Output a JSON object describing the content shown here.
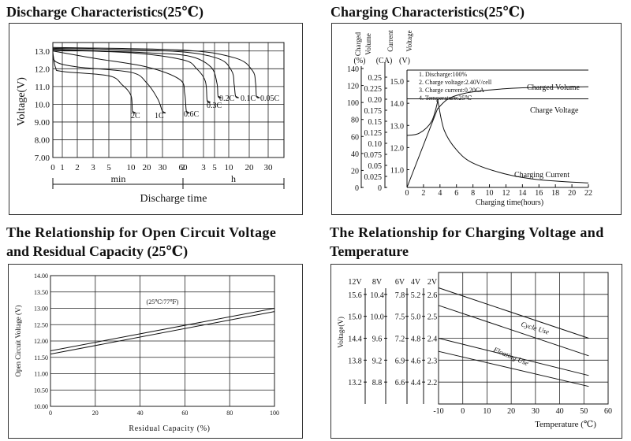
{
  "headings": {
    "discharge": "Discharge Characteristics(25℃)",
    "charging": "Charging Characteristics(25℃)",
    "ocv_line1": "The Relationship for Open Circuit Voltage",
    "ocv_line2": "and Residual Capacity (25℃)",
    "temp_line1": "The Relationship for Charging Voltage and",
    "temp_line2": "Temperature"
  },
  "chart_data": [
    {
      "id": "discharge",
      "type": "line",
      "title": "Discharge Characteristics(25℃)",
      "ylabel": "Voltage(V)",
      "xlabel": "Discharge time",
      "x_groups": [
        "min",
        "h"
      ],
      "x_ticks_min": [
        "0",
        "1",
        "2",
        "3",
        "5",
        "10",
        "20",
        "30",
        "60"
      ],
      "x_ticks_h": [
        "2",
        "3",
        "5",
        "10",
        "20",
        "30"
      ],
      "y_ticks": [
        "7.00",
        "8.00",
        "9.00",
        "10.0",
        "11.0",
        "12.0",
        "13.0"
      ],
      "ylim": [
        7,
        13.3
      ],
      "grid": true,
      "series": [
        {
          "name": "2C",
          "points": [
            [
              0,
              12.9
            ],
            [
              0.3,
              12.05
            ],
            [
              1,
              11.85
            ],
            [
              5,
              11.6
            ],
            [
              8,
              11.1
            ],
            [
              10,
              10.5
            ],
            [
              11,
              9.6
            ]
          ]
        },
        {
          "name": "1C",
          "points": [
            [
              0,
              12.95
            ],
            [
              0.3,
              12.4
            ],
            [
              2,
              12.1
            ],
            [
              10,
              11.8
            ],
            [
              20,
              11.2
            ],
            [
              27,
              10.3
            ],
            [
              30,
              9.6
            ]
          ]
        },
        {
          "name": "0.6C",
          "points": [
            [
              0,
              13.0
            ],
            [
              3,
              12.6
            ],
            [
              20,
              12.1
            ],
            [
              55,
              11.4
            ],
            [
              65,
              10.6
            ],
            [
              70,
              9.6
            ]
          ]
        },
        {
          "name": "0.3C",
          "points": [
            [
              0,
              13.05
            ],
            [
              10,
              12.9
            ],
            [
              60,
              12.5
            ],
            [
              100,
              12.0
            ],
            [
              130,
              11.3
            ],
            [
              140,
              10.2
            ]
          ]
        },
        {
          "name": "0.2C",
          "points": [
            [
              0,
              13.1
            ],
            [
              20,
              12.9
            ],
            [
              80,
              12.7
            ],
            [
              160,
              12.1
            ],
            [
              200,
              11.2
            ],
            [
              210,
              10.45
            ]
          ]
        },
        {
          "name": "0.1C",
          "points": [
            [
              0,
              13.15
            ],
            [
              40,
              13.0
            ],
            [
              200,
              12.6
            ],
            [
              340,
              11.9
            ],
            [
              380,
              11.1
            ],
            [
              400,
              10.45
            ]
          ]
        },
        {
          "name": "0.05C",
          "points": [
            [
              0,
              13.2
            ],
            [
              60,
              13.05
            ],
            [
              400,
              12.6
            ],
            [
              700,
              11.9
            ],
            [
              800,
              11.2
            ],
            [
              830,
              10.45
            ]
          ]
        }
      ]
    },
    {
      "id": "charging",
      "type": "line",
      "title": "Charging Characteristics(25℃)",
      "xlabel": "Charging time(hours)",
      "x_ticks": [
        "0",
        "2",
        "4",
        "6",
        "8",
        "10",
        "12",
        "14",
        "16",
        "18",
        "20",
        "22"
      ],
      "xlim": [
        0,
        22
      ],
      "axis_headers": {
        "charged_volume": [
          "Charged",
          "Volume"
        ],
        "current": "Current",
        "voltage": "Voltage"
      },
      "axis_units": {
        "charged_volume": "(%)",
        "current": "(CA)",
        "voltage": "(V)"
      },
      "charged_volume_ticks": [
        "0",
        "20",
        "40",
        "60",
        "80",
        "100",
        "120",
        "140"
      ],
      "current_ticks": [
        "0",
        "0.025",
        "0.05",
        "0.075",
        "0.10",
        "0.125",
        "0.15",
        "0.175",
        "0.20",
        "0.225",
        "0.25"
      ],
      "voltage_ticks": [
        "11.0",
        "12.0",
        "13.0",
        "14.0",
        "15.0"
      ],
      "voltage_lim": [
        10.2,
        15.5
      ],
      "notes": [
        "1. Discharge:100%",
        "2. Charge voltage:2.40V/cell",
        "3. Charge current:0.20CA",
        "4. Temperature:25℃"
      ],
      "series": [
        {
          "name": "Charged Volume",
          "points": [
            [
              0,
              10.2
            ],
            [
              3.7,
              13.75
            ],
            [
              5,
              14.2
            ],
            [
              7,
              14.45
            ],
            [
              10,
              14.6
            ],
            [
              14,
              14.7
            ],
            [
              22,
              14.75
            ]
          ]
        },
        {
          "name": "Charge Voltage",
          "points": [
            [
              0,
              12.55
            ],
            [
              1.5,
              12.65
            ],
            [
              3,
              13.2
            ],
            [
              3.8,
              14.2
            ],
            [
              22,
              14.2
            ]
          ]
        },
        {
          "name": "Charging Current",
          "points": [
            [
              0,
              14.2
            ],
            [
              3.7,
              14.2
            ],
            [
              4.5,
              12.8
            ],
            [
              6,
              11.9
            ],
            [
              8,
              11.3
            ],
            [
              12,
              10.8
            ],
            [
              16,
              10.55
            ],
            [
              22,
              10.4
            ]
          ]
        }
      ]
    },
    {
      "id": "ocv",
      "type": "line",
      "title": "The Relationship for Open Circuit Voltage and Residual Capacity (25℃)",
      "xlabel": "Residual Capacity (%)",
      "ylabel": "Open Circuit Voltage (V)",
      "annotation": "(25℃/77℉)",
      "x_ticks": [
        "0",
        "20",
        "40",
        "60",
        "80",
        "100"
      ],
      "xlim": [
        0,
        100
      ],
      "y_ticks": [
        "10.00",
        "10.50",
        "11.00",
        "11.50",
        "12.00",
        "12.50",
        "13.00",
        "13.50",
        "14.00"
      ],
      "ylim": [
        10,
        14
      ],
      "grid": true,
      "series": [
        {
          "name": "upper",
          "points": [
            [
              0,
              11.7
            ],
            [
              100,
              13.0
            ]
          ]
        },
        {
          "name": "lower",
          "points": [
            [
              0,
              11.6
            ],
            [
              100,
              12.9
            ]
          ]
        }
      ]
    },
    {
      "id": "temperature",
      "type": "line",
      "title": "The Relationship for Charging Voltage and Temperature",
      "xlabel": "Temperature (℃)",
      "ylabel": "Voltage(V)",
      "x_ticks": [
        "-10",
        "0",
        "10",
        "20",
        "30",
        "40",
        "50",
        "60"
      ],
      "xlim": [
        -10,
        60
      ],
      "column_headers": [
        "12V",
        "8V",
        "6V",
        "4V",
        "2V"
      ],
      "y_columns": {
        "12V": [
          "15.6",
          "15.0",
          "14.4",
          "13.8",
          "13.2"
        ],
        "8V": [
          "10.4",
          "10.0",
          "9.6",
          "9.2",
          "8.8"
        ],
        "6V": [
          "7.8",
          "7.5",
          "7.2",
          "6.9",
          "6.6"
        ],
        "4V": [
          "5.2",
          "5.0",
          "4.8",
          "4.6",
          "4.4"
        ],
        "2V": [
          "2.6",
          "2.5",
          "2.4",
          "2.3",
          "2.2"
        ]
      },
      "ylim_2v": [
        2.1,
        2.7
      ],
      "grid": true,
      "series": [
        {
          "name": "Cycle Use",
          "label": "Cycle Use",
          "bands": [
            [
              [
                -10,
                2.63
              ],
              [
                52,
                2.4
              ]
            ],
            [
              [
                -10,
                2.55
              ],
              [
                52,
                2.32
              ]
            ]
          ]
        },
        {
          "name": "Floating Use",
          "label": "Floating Use",
          "bands": [
            [
              [
                -10,
                2.4
              ],
              [
                52,
                2.23
              ]
            ],
            [
              [
                -10,
                2.34
              ],
              [
                52,
                2.18
              ]
            ]
          ]
        }
      ]
    }
  ]
}
